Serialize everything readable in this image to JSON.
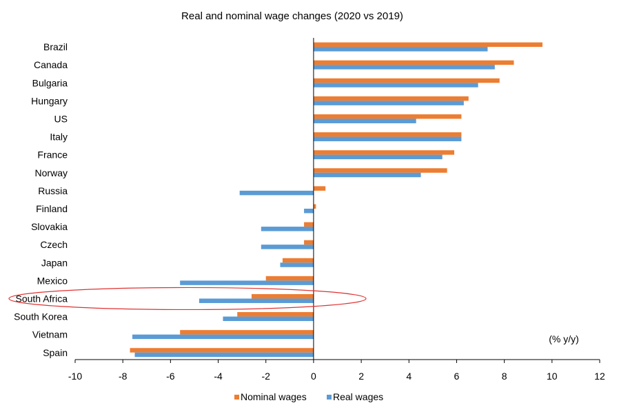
{
  "chart_data": {
    "type": "bar",
    "orientation": "horizontal",
    "title": "Real and nominal wage changes (2020 vs 2019)",
    "unit_label": "(% y/y)",
    "categories": [
      "Brazil",
      "Canada",
      "Bulgaria",
      "Hungary",
      "US",
      "Italy",
      "France",
      "Norway",
      "Russia",
      "Finland",
      "Slovakia",
      "Czech",
      "Japan",
      "Mexico",
      "South Africa",
      "South Korea",
      "Vietnam",
      "Spain"
    ],
    "series": [
      {
        "name": "Nominal wages",
        "color": "#ED7D31",
        "values": [
          9.6,
          8.4,
          7.8,
          6.5,
          6.2,
          6.2,
          5.9,
          5.6,
          0.5,
          0.1,
          -0.4,
          -0.4,
          -1.3,
          -2.0,
          -2.6,
          -3.2,
          -5.6,
          -7.7
        ]
      },
      {
        "name": "Real wages",
        "color": "#5B9BD5",
        "values": [
          7.3,
          7.6,
          6.9,
          6.3,
          4.3,
          6.2,
          5.4,
          4.5,
          -3.1,
          -0.4,
          -2.2,
          -2.2,
          -1.4,
          -5.6,
          -4.8,
          -3.8,
          -7.6,
          -7.5
        ]
      }
    ],
    "xlim": [
      -10,
      12
    ],
    "xticks": [
      -10,
      -8,
      -6,
      -4,
      -2,
      0,
      2,
      4,
      6,
      8,
      10,
      12
    ],
    "grid": false,
    "legend_position": "bottom",
    "annotation": {
      "type": "ellipse",
      "category": "South Africa",
      "color": "#E03030"
    }
  }
}
